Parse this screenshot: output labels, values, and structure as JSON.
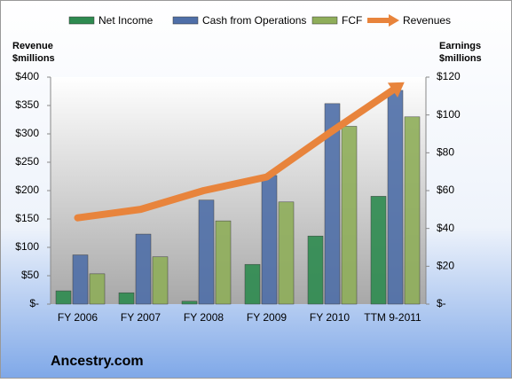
{
  "chart_data": {
    "type": "combo",
    "ylabel": [
      "Revenue",
      "$millions"
    ],
    "y2label": [
      "Earnings",
      "$millions"
    ],
    "footer": "Ancestry.com",
    "categories": [
      "FY 2006",
      "FY 2007",
      "FY 2008",
      "FY 2009",
      "FY 2010",
      "TTM 9-2011"
    ],
    "series": [
      {
        "name": "Net Income",
        "type": "bar",
        "axis": "y2",
        "color": "#2e8b50",
        "values": [
          7,
          6,
          1.5,
          21,
          36,
          57
        ]
      },
      {
        "name": "Cash from Operations",
        "type": "bar",
        "axis": "y2",
        "color": "#4f6fa8",
        "values": [
          26,
          37,
          55,
          68,
          106,
          113
        ]
      },
      {
        "name": "FCF",
        "type": "bar",
        "axis": "y2",
        "color": "#8fae5a",
        "values": [
          16,
          25,
          44,
          54,
          94,
          99
        ]
      },
      {
        "name": "Revenues",
        "type": "line",
        "axis": "y",
        "color": "#e8843c",
        "values": [
          152,
          167,
          200,
          224,
          302,
          377
        ]
      }
    ],
    "ylim": [
      0,
      400
    ],
    "yticks": [
      {
        "value": 0,
        "label": "$-"
      },
      {
        "value": 50,
        "label": "$50"
      },
      {
        "value": 100,
        "label": "$100"
      },
      {
        "value": 150,
        "label": "$150"
      },
      {
        "value": 200,
        "label": "$200"
      },
      {
        "value": 250,
        "label": "$250"
      },
      {
        "value": 300,
        "label": "$300"
      },
      {
        "value": 350,
        "label": "$350"
      },
      {
        "value": 400,
        "label": "$400"
      }
    ],
    "y2lim": [
      0,
      120
    ],
    "y2ticks": [
      {
        "value": 0,
        "label": "$-"
      },
      {
        "value": 20,
        "label": "$20"
      },
      {
        "value": 40,
        "label": "$40"
      },
      {
        "value": 60,
        "label": "$60"
      },
      {
        "value": 80,
        "label": "$80"
      },
      {
        "value": 100,
        "label": "$100"
      },
      {
        "value": 120,
        "label": "$120"
      }
    ]
  }
}
